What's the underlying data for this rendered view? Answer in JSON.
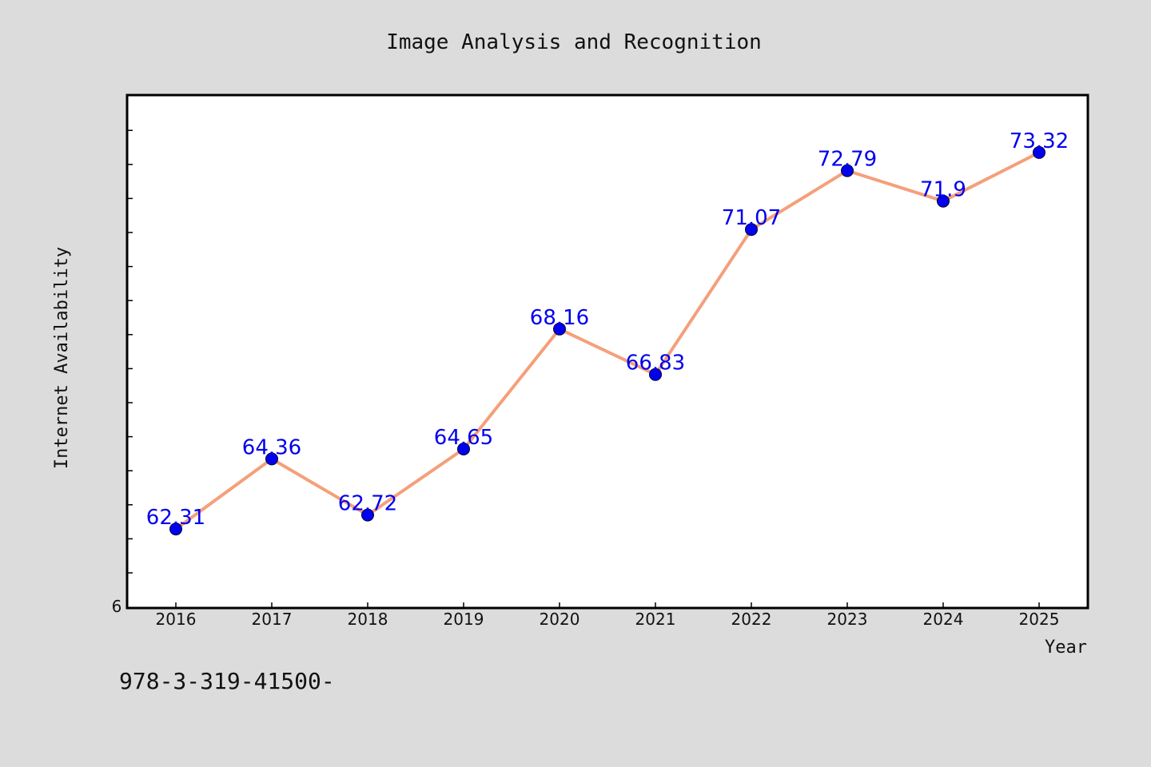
{
  "chart_data": {
    "type": "line",
    "title": "Image Analysis and Recognition",
    "xlabel": "Year",
    "ylabel": "Internet Availability",
    "categories": [
      "2016",
      "2017",
      "2018",
      "2019",
      "2020",
      "2021",
      "2022",
      "2023",
      "2024",
      "2025"
    ],
    "series": [
      {
        "values": [
          62.31,
          64.36,
          62.72,
          64.65,
          68.16,
          66.83,
          71.07,
          72.79,
          71.9,
          73.32
        ],
        "value_labels": [
          "62.31",
          "64.36",
          "62.72",
          "64.65",
          "68.16",
          "66.83",
          "71.07",
          "72.79",
          "71.9",
          "73.32"
        ],
        "line_color": "#f4a07a",
        "marker_color": "#0000ee"
      }
    ],
    "y_min_label": "6",
    "ylim": [
      60,
      75
    ],
    "grid": false
  },
  "footer_text": "978-3-319-41500-",
  "colors": {
    "background": "#dcdcdc",
    "plot_background": "#ffffff",
    "label_color": "#0000ee"
  }
}
